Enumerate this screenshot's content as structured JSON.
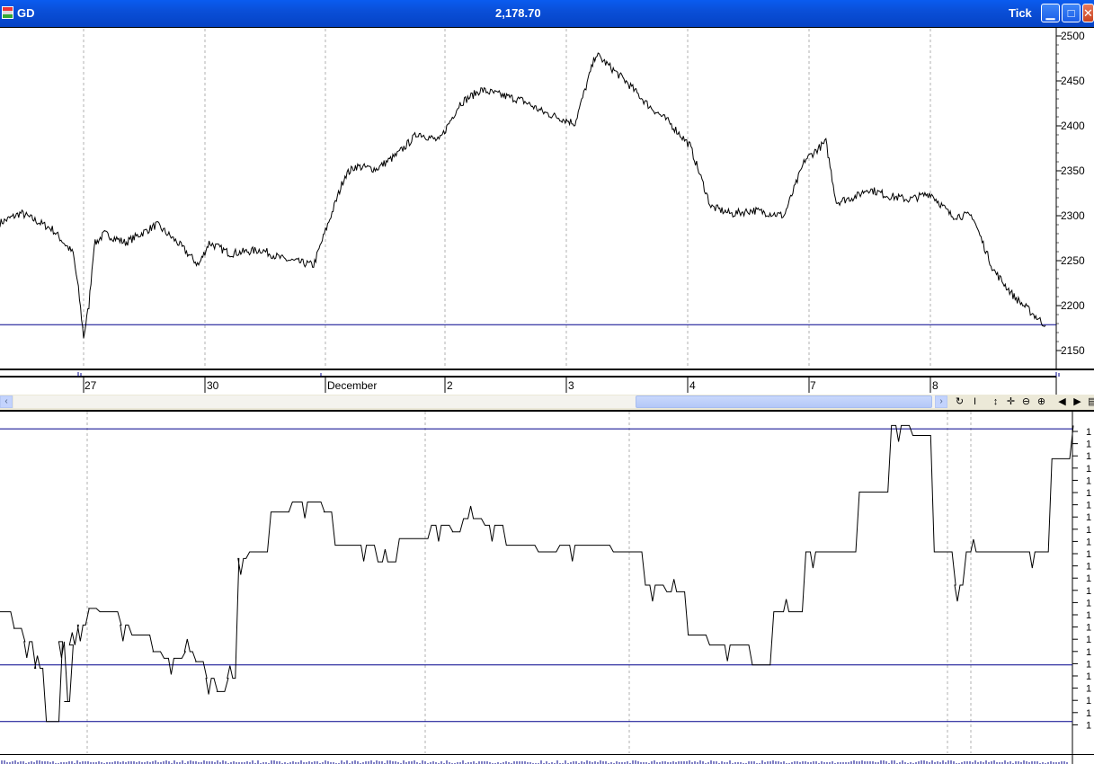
{
  "window": {
    "symbol": "GD",
    "price": "2,178.70",
    "mode": "Tick",
    "buttons": {
      "minimize_icon": "minimize-icon",
      "maximize_icon": "maximize-icon",
      "close_icon": "close-icon"
    }
  },
  "colors": {
    "price_line": "#000000",
    "level_line": "#00008b",
    "grid": "#b0b0b0",
    "titlebar": "#0a5cf0"
  },
  "date_axis": {
    "labels": [
      "27",
      "30",
      "December",
      "2",
      "3",
      "4",
      "7",
      "8"
    ]
  },
  "chart_data": [
    {
      "type": "line",
      "panel": "price",
      "yticks": [
        2500,
        2450,
        2400,
        2350,
        2300,
        2250,
        2200,
        2150
      ],
      "ylim": [
        2130,
        2510
      ],
      "horizontal_line": 2178.7,
      "grid": "vertical dotted at session boundaries",
      "x": [
        0,
        0.02,
        0.05,
        0.07,
        0.075,
        0.08,
        0.085,
        0.09,
        0.1,
        0.12,
        0.15,
        0.17,
        0.19,
        0.2,
        0.22,
        0.25,
        0.27,
        0.3,
        0.33,
        0.34,
        0.36,
        0.38,
        0.4,
        0.42,
        0.44,
        0.46,
        0.5,
        0.52,
        0.55,
        0.57,
        0.6,
        0.62,
        0.64,
        0.66,
        0.68,
        0.7,
        0.72,
        0.75,
        0.77,
        0.79,
        0.8,
        0.82,
        0.83,
        0.85,
        0.87,
        0.89,
        0.91,
        0.93,
        0.95,
        0.97,
        1.0
      ],
      "values": [
        2292,
        2303,
        2285,
        2258,
        2218,
        2165,
        2200,
        2268,
        2280,
        2270,
        2290,
        2270,
        2245,
        2270,
        2258,
        2262,
        2252,
        2245,
        2345,
        2355,
        2352,
        2368,
        2392,
        2383,
        2425,
        2440,
        2428,
        2415,
        2403,
        2480,
        2448,
        2423,
        2404,
        2378,
        2310,
        2302,
        2306,
        2300,
        2362,
        2382,
        2315,
        2322,
        2330,
        2322,
        2318,
        2325,
        2300,
        2300,
        2240,
        2210,
        2178
      ]
    },
    {
      "type": "line",
      "panel": "indicator",
      "style": "step",
      "ytick_labels": [
        "1",
        "1",
        "1",
        "1",
        "1",
        "1",
        "1",
        "1",
        "1",
        "1",
        "1",
        "1",
        "1",
        "1",
        "1",
        "1",
        "1",
        "1",
        "1",
        "1",
        "1",
        "1",
        "1",
        "1",
        "1"
      ],
      "horizontal_lines": [
        0.97,
        0.26,
        0.09
      ],
      "x": [
        0,
        0.01,
        0.02,
        0.03,
        0.04,
        0.055,
        0.06,
        0.065,
        0.07,
        0.08,
        0.09,
        0.11,
        0.12,
        0.14,
        0.15,
        0.17,
        0.18,
        0.19,
        0.2,
        0.21,
        0.22,
        0.23,
        0.25,
        0.27,
        0.3,
        0.31,
        0.33,
        0.35,
        0.37,
        0.4,
        0.42,
        0.43,
        0.45,
        0.47,
        0.5,
        0.52,
        0.55,
        0.57,
        0.6,
        0.62,
        0.64,
        0.66,
        0.7,
        0.72,
        0.75,
        0.77,
        0.8,
        0.83,
        0.85,
        0.87,
        0.89,
        0.9,
        0.92,
        0.95,
        0.98,
        1.0
      ],
      "values": [
        0.42,
        0.37,
        0.33,
        0.25,
        0.09,
        0.33,
        0.15,
        0.32,
        0.38,
        0.43,
        0.42,
        0.38,
        0.35,
        0.3,
        0.28,
        0.3,
        0.27,
        0.22,
        0.18,
        0.22,
        0.58,
        0.6,
        0.72,
        0.75,
        0.72,
        0.62,
        0.62,
        0.57,
        0.64,
        0.68,
        0.66,
        0.7,
        0.68,
        0.62,
        0.6,
        0.62,
        0.62,
        0.6,
        0.5,
        0.48,
        0.35,
        0.32,
        0.26,
        0.42,
        0.6,
        0.6,
        0.78,
        0.98,
        0.95,
        0.6,
        0.5,
        0.6,
        0.6,
        0.6,
        0.88,
        0.98
      ]
    }
  ]
}
